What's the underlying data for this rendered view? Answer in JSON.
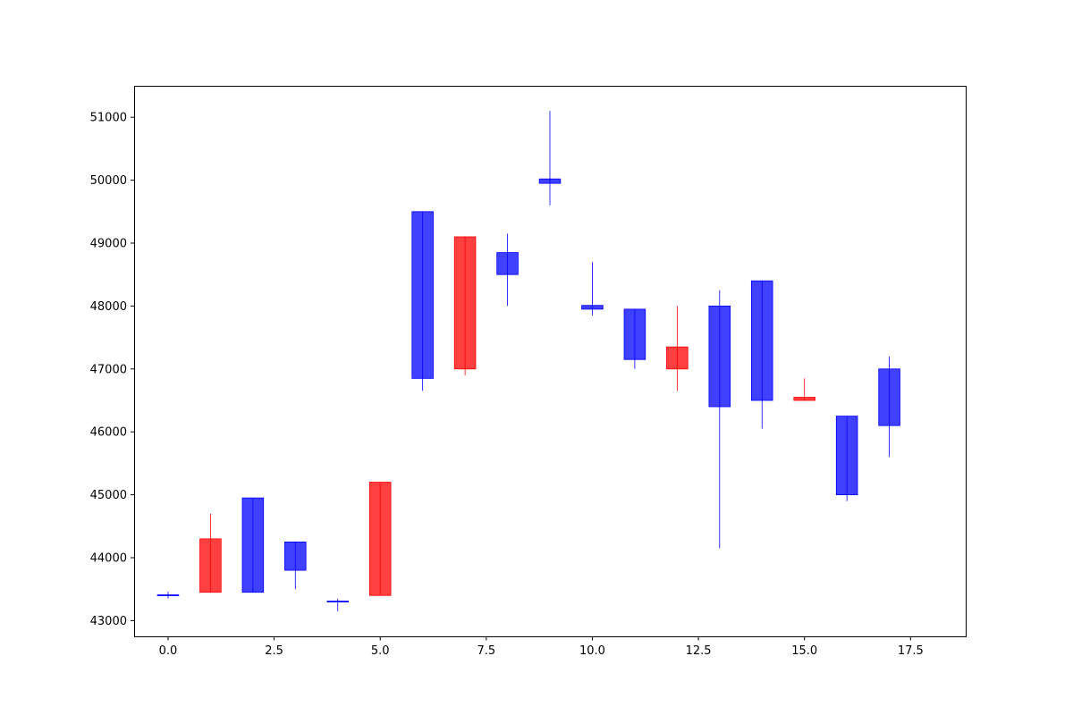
{
  "chart_data": {
    "type": "candlestick",
    "title": "",
    "xlabel": "",
    "ylabel": "",
    "xlim": [
      -0.8,
      18.8
    ],
    "ylim": [
      42750,
      51500
    ],
    "x_ticks": [
      0.0,
      2.5,
      5.0,
      7.5,
      10.0,
      12.5,
      15.0,
      17.5
    ],
    "x_tick_labels": [
      "0.0",
      "2.5",
      "5.0",
      "7.5",
      "10.0",
      "12.5",
      "15.0",
      "17.5"
    ],
    "y_ticks": [
      43000,
      44000,
      45000,
      46000,
      47000,
      48000,
      49000,
      50000,
      51000
    ],
    "y_tick_labels": [
      "43000",
      "44000",
      "45000",
      "46000",
      "47000",
      "48000",
      "49000",
      "50000",
      "51000"
    ],
    "grid": false,
    "colors": {
      "up": "#0000ff",
      "down": "#ff0000"
    },
    "candles": [
      {
        "x": 0,
        "open": 43400,
        "close": 43410,
        "high": 43460,
        "low": 43350
      },
      {
        "x": 1,
        "open": 44300,
        "close": 43450,
        "high": 44700,
        "low": 43450
      },
      {
        "x": 2,
        "open": 43450,
        "close": 44950,
        "high": 44950,
        "low": 43450
      },
      {
        "x": 3,
        "open": 43800,
        "close": 44250,
        "high": 44250,
        "low": 43500
      },
      {
        "x": 4,
        "open": 43300,
        "close": 43310,
        "high": 43350,
        "low": 43150
      },
      {
        "x": 5,
        "open": 45200,
        "close": 43400,
        "high": 45200,
        "low": 43400
      },
      {
        "x": 6,
        "open": 46850,
        "close": 49500,
        "high": 49500,
        "low": 46650
      },
      {
        "x": 7,
        "open": 49100,
        "close": 47000,
        "high": 49100,
        "low": 46900
      },
      {
        "x": 8,
        "open": 48500,
        "close": 48850,
        "high": 49150,
        "low": 48000
      },
      {
        "x": 9,
        "open": 49950,
        "close": 50020,
        "high": 51100,
        "low": 49600
      },
      {
        "x": 10,
        "open": 47950,
        "close": 48010,
        "high": 48700,
        "low": 47850
      },
      {
        "x": 11,
        "open": 47150,
        "close": 47950,
        "high": 47950,
        "low": 47000
      },
      {
        "x": 12,
        "open": 47350,
        "close": 47000,
        "high": 48000,
        "low": 46650
      },
      {
        "x": 13,
        "open": 46400,
        "close": 48000,
        "high": 48250,
        "low": 44150
      },
      {
        "x": 14,
        "open": 46500,
        "close": 48400,
        "high": 48400,
        "low": 46050
      },
      {
        "x": 15,
        "open": 46550,
        "close": 46500,
        "high": 46850,
        "low": 46500
      },
      {
        "x": 16,
        "open": 45000,
        "close": 46250,
        "high": 46250,
        "low": 44900
      },
      {
        "x": 17,
        "open": 46100,
        "close": 47000,
        "high": 47200,
        "low": 45600
      }
    ]
  }
}
